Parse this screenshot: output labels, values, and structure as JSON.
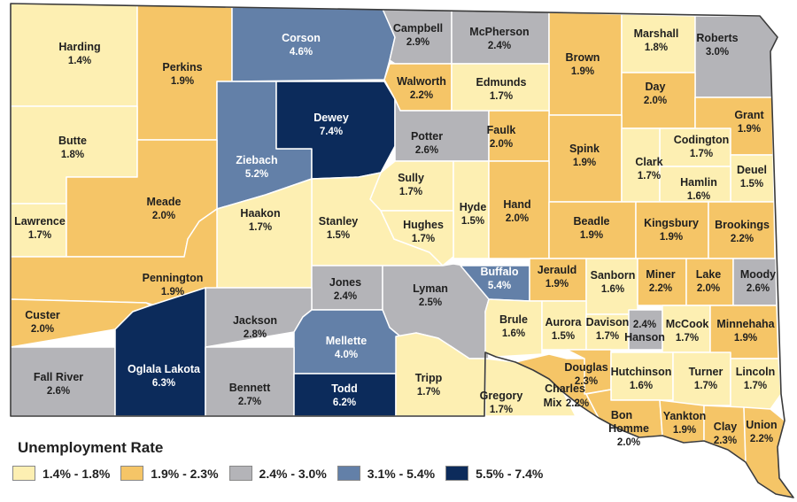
{
  "legend": {
    "title": "Unemployment Rate",
    "items": [
      {
        "label": "1.4% - 1.8%",
        "color": "#fdefb2"
      },
      {
        "label": "1.9% - 2.3%",
        "color": "#f5c567"
      },
      {
        "label": "2.4% - 3.0%",
        "color": "#b4b4b8"
      },
      {
        "label": "3.1% - 5.4%",
        "color": "#6380a8"
      },
      {
        "label": "5.5% - 7.4%",
        "color": "#0c2b5b"
      }
    ]
  },
  "counties": [
    {
      "name": "Harding",
      "rate": "1.4%"
    },
    {
      "name": "Perkins",
      "rate": "1.9%"
    },
    {
      "name": "Corson",
      "rate": "4.6%"
    },
    {
      "name": "Campbell",
      "rate": "2.9%"
    },
    {
      "name": "McPherson",
      "rate": "2.4%"
    },
    {
      "name": "Brown",
      "rate": "1.9%"
    },
    {
      "name": "Marshall",
      "rate": "1.8%"
    },
    {
      "name": "Roberts",
      "rate": "3.0%"
    },
    {
      "name": "Butte",
      "rate": "1.8%"
    },
    {
      "name": "Ziebach",
      "rate": "5.2%"
    },
    {
      "name": "Dewey",
      "rate": "7.4%"
    },
    {
      "name": "Walworth",
      "rate": "2.2%"
    },
    {
      "name": "Edmunds",
      "rate": "1.7%"
    },
    {
      "name": "Day",
      "rate": "2.0%"
    },
    {
      "name": "Grant",
      "rate": "1.9%"
    },
    {
      "name": "Potter",
      "rate": "2.6%"
    },
    {
      "name": "Faulk",
      "rate": "2.0%"
    },
    {
      "name": "Spink",
      "rate": "1.9%"
    },
    {
      "name": "Codington",
      "rate": "1.7%"
    },
    {
      "name": "Clark",
      "rate": "1.7%"
    },
    {
      "name": "Deuel",
      "rate": "1.5%"
    },
    {
      "name": "Hamlin",
      "rate": "1.6%"
    },
    {
      "name": "Lawrence",
      "rate": "1.7%"
    },
    {
      "name": "Meade",
      "rate": "2.0%"
    },
    {
      "name": "Sully",
      "rate": "1.7%"
    },
    {
      "name": "Hyde",
      "rate": "1.5%"
    },
    {
      "name": "Hand",
      "rate": "2.0%"
    },
    {
      "name": "Stanley",
      "rate": "1.5%"
    },
    {
      "name": "Hughes",
      "rate": "1.7%"
    },
    {
      "name": "Haakon",
      "rate": "1.7%"
    },
    {
      "name": "Beadle",
      "rate": "1.9%"
    },
    {
      "name": "Kingsbury",
      "rate": "1.9%"
    },
    {
      "name": "Brookings",
      "rate": "2.2%"
    },
    {
      "name": "Pennington",
      "rate": "1.9%"
    },
    {
      "name": "Jones",
      "rate": "2.4%"
    },
    {
      "name": "Lyman",
      "rate": "2.5%"
    },
    {
      "name": "Buffalo",
      "rate": "5.4%"
    },
    {
      "name": "Jerauld",
      "rate": "1.9%"
    },
    {
      "name": "Sanborn",
      "rate": "1.6%"
    },
    {
      "name": "Miner",
      "rate": "2.2%"
    },
    {
      "name": "Lake",
      "rate": "2.0%"
    },
    {
      "name": "Moody",
      "rate": "2.6%"
    },
    {
      "name": "Custer",
      "rate": "2.0%"
    },
    {
      "name": "Jackson",
      "rate": "2.8%"
    },
    {
      "name": "Mellette",
      "rate": "4.0%"
    },
    {
      "name": "Brule",
      "rate": "1.6%"
    },
    {
      "name": "Aurora",
      "rate": "1.5%"
    },
    {
      "name": "Davison",
      "rate": "1.7%"
    },
    {
      "name": "Hanson",
      "rate": "2.4%"
    },
    {
      "name": "McCook",
      "rate": "1.7%"
    },
    {
      "name": "Minnehaha",
      "rate": "1.9%"
    },
    {
      "name": "Fall River",
      "rate": "2.6%"
    },
    {
      "name": "Oglala Lakota",
      "rate": "6.3%"
    },
    {
      "name": "Bennett",
      "rate": "2.7%"
    },
    {
      "name": "Todd",
      "rate": "6.2%"
    },
    {
      "name": "Tripp",
      "rate": "1.7%"
    },
    {
      "name": "Gregory",
      "rate": "1.7%"
    },
    {
      "name": "Charles Mix",
      "rate": "2.2%"
    },
    {
      "name": "Douglas",
      "rate": "2.3%"
    },
    {
      "name": "Hutchinson",
      "rate": "1.6%"
    },
    {
      "name": "Turner",
      "rate": "1.7%"
    },
    {
      "name": "Lincoln",
      "rate": "1.7%"
    },
    {
      "name": "Bon Homme",
      "rate": "2.0%"
    },
    {
      "name": "Yankton",
      "rate": "1.9%"
    },
    {
      "name": "Clay",
      "rate": "2.3%"
    },
    {
      "name": "Union",
      "rate": "2.2%"
    }
  ]
}
